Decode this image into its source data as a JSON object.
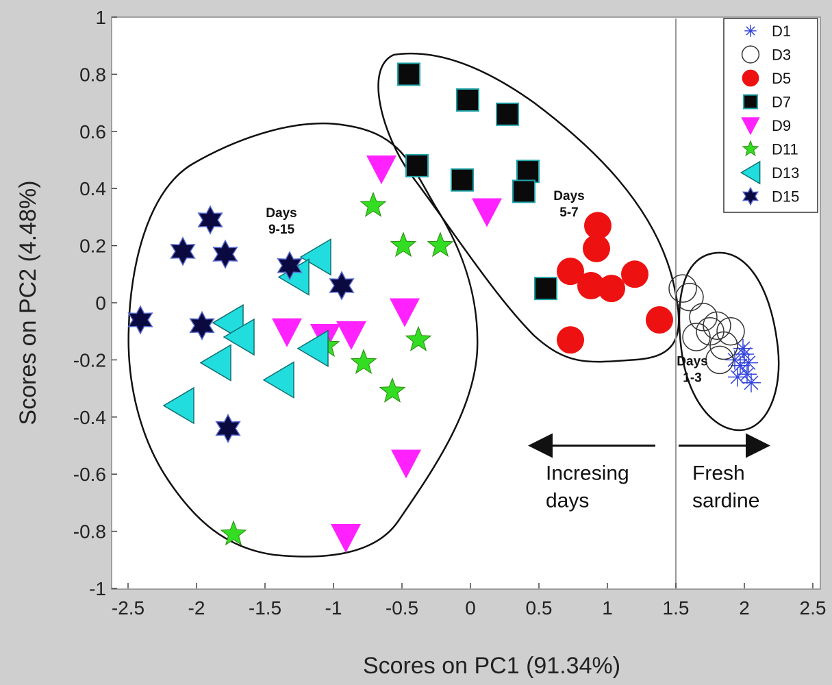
{
  "chart_data": {
    "type": "scatter",
    "title": "",
    "xlabel": "Scores on PC1 (91.34%)",
    "ylabel": "Scores on PC2 (4.48%)",
    "xlim": [
      -2.5,
      2.5
    ],
    "ylim": [
      -1,
      1
    ],
    "x_ticks": [
      "-2.5",
      "-2",
      "-1.5",
      "-1",
      "-0.5",
      "0",
      "0.5",
      "1",
      "1.5",
      "2",
      "2.5"
    ],
    "y_ticks": [
      "1",
      "0.8",
      "0.6",
      "0.4",
      "0.2",
      "0",
      "-0.2",
      "-0.4",
      "-0.6",
      "-0.8",
      "-1"
    ],
    "vertical_line_x": 1.5,
    "legend_position": "top-right",
    "series": [
      {
        "name": "D1",
        "marker": "asterisk",
        "color": "#3344dd",
        "points": [
          [
            1.93,
            -0.2
          ],
          [
            1.97,
            -0.22
          ],
          [
            2.0,
            -0.18
          ],
          [
            2.02,
            -0.25
          ],
          [
            1.95,
            -0.26
          ],
          [
            2.05,
            -0.28
          ],
          [
            1.99,
            -0.16
          ],
          [
            2.03,
            -0.21
          ]
        ]
      },
      {
        "name": "D3",
        "marker": "open-circle",
        "color": "#333333",
        "points": [
          [
            1.55,
            0.05
          ],
          [
            1.6,
            0.02
          ],
          [
            1.7,
            -0.05
          ],
          [
            1.75,
            -0.1
          ],
          [
            1.65,
            -0.12
          ],
          [
            1.8,
            -0.08
          ],
          [
            1.85,
            -0.15
          ],
          [
            1.9,
            -0.1
          ],
          [
            1.82,
            -0.2
          ]
        ]
      },
      {
        "name": "D5",
        "marker": "filled-circle",
        "color": "#ee1111",
        "points": [
          [
            0.93,
            0.27
          ],
          [
            0.92,
            0.19
          ],
          [
            0.73,
            0.11
          ],
          [
            0.88,
            0.06
          ],
          [
            1.03,
            0.05
          ],
          [
            1.2,
            0.1
          ],
          [
            1.38,
            -0.06
          ],
          [
            0.73,
            -0.13
          ]
        ]
      },
      {
        "name": "D7",
        "marker": "square",
        "color": "#0a0a0a",
        "points": [
          [
            -0.45,
            0.8
          ],
          [
            -0.02,
            0.71
          ],
          [
            0.27,
            0.66
          ],
          [
            -0.39,
            0.48
          ],
          [
            -0.06,
            0.43
          ],
          [
            0.42,
            0.46
          ],
          [
            0.39,
            0.39
          ],
          [
            0.55,
            0.05
          ]
        ]
      },
      {
        "name": "D9",
        "marker": "down-triangle",
        "color": "#ff22ff",
        "points": [
          [
            -0.65,
            0.47
          ],
          [
            0.12,
            0.32
          ],
          [
            -0.48,
            -0.03
          ],
          [
            -1.34,
            -0.1
          ],
          [
            -1.06,
            -0.12
          ],
          [
            -0.87,
            -0.11
          ],
          [
            -0.47,
            -0.56
          ],
          [
            -0.91,
            -0.82
          ]
        ]
      },
      {
        "name": "D11",
        "marker": "star",
        "color": "#33dd22",
        "points": [
          [
            -0.71,
            0.34
          ],
          [
            -0.49,
            0.2
          ],
          [
            -0.22,
            0.2
          ],
          [
            -1.05,
            -0.15
          ],
          [
            -0.38,
            -0.13
          ],
          [
            -0.78,
            -0.21
          ],
          [
            -0.57,
            -0.31
          ],
          [
            -1.73,
            -0.81
          ]
        ]
      },
      {
        "name": "D13",
        "marker": "left-triangle",
        "color": "#22dddd",
        "points": [
          [
            -1.13,
            0.16
          ],
          [
            -1.29,
            0.09
          ],
          [
            -1.77,
            -0.07
          ],
          [
            -1.69,
            -0.12
          ],
          [
            -1.15,
            -0.16
          ],
          [
            -1.86,
            -0.21
          ],
          [
            -1.4,
            -0.27
          ],
          [
            -2.13,
            -0.36
          ]
        ]
      },
      {
        "name": "D15",
        "marker": "hexagram",
        "color": "#0a0a40",
        "points": [
          [
            -1.9,
            0.29
          ],
          [
            -2.1,
            0.18
          ],
          [
            -1.79,
            0.17
          ],
          [
            -1.32,
            0.13
          ],
          [
            -0.94,
            0.06
          ],
          [
            -2.41,
            -0.06
          ],
          [
            -1.96,
            -0.08
          ],
          [
            -1.77,
            -0.44
          ]
        ]
      }
    ],
    "annotations": [
      {
        "text_lines": [
          "Days",
          "9-15"
        ],
        "x": -1.38,
        "y": 0.3
      },
      {
        "text_lines": [
          "Days",
          "5-7"
        ],
        "x": 0.72,
        "y": 0.36
      },
      {
        "text_lines": [
          "Days",
          "1-3"
        ],
        "x": 1.62,
        "y": -0.22
      }
    ],
    "arrow_notes": [
      {
        "text_lines": [
          "Incresing",
          "days"
        ],
        "direction": "left",
        "from_x": 1.35,
        "to_x": 0.45,
        "y": -0.5
      },
      {
        "text_lines": [
          "Fresh",
          "sardine"
        ],
        "direction": "right",
        "from_x": 1.52,
        "to_x": 2.16,
        "y": -0.5
      }
    ]
  }
}
